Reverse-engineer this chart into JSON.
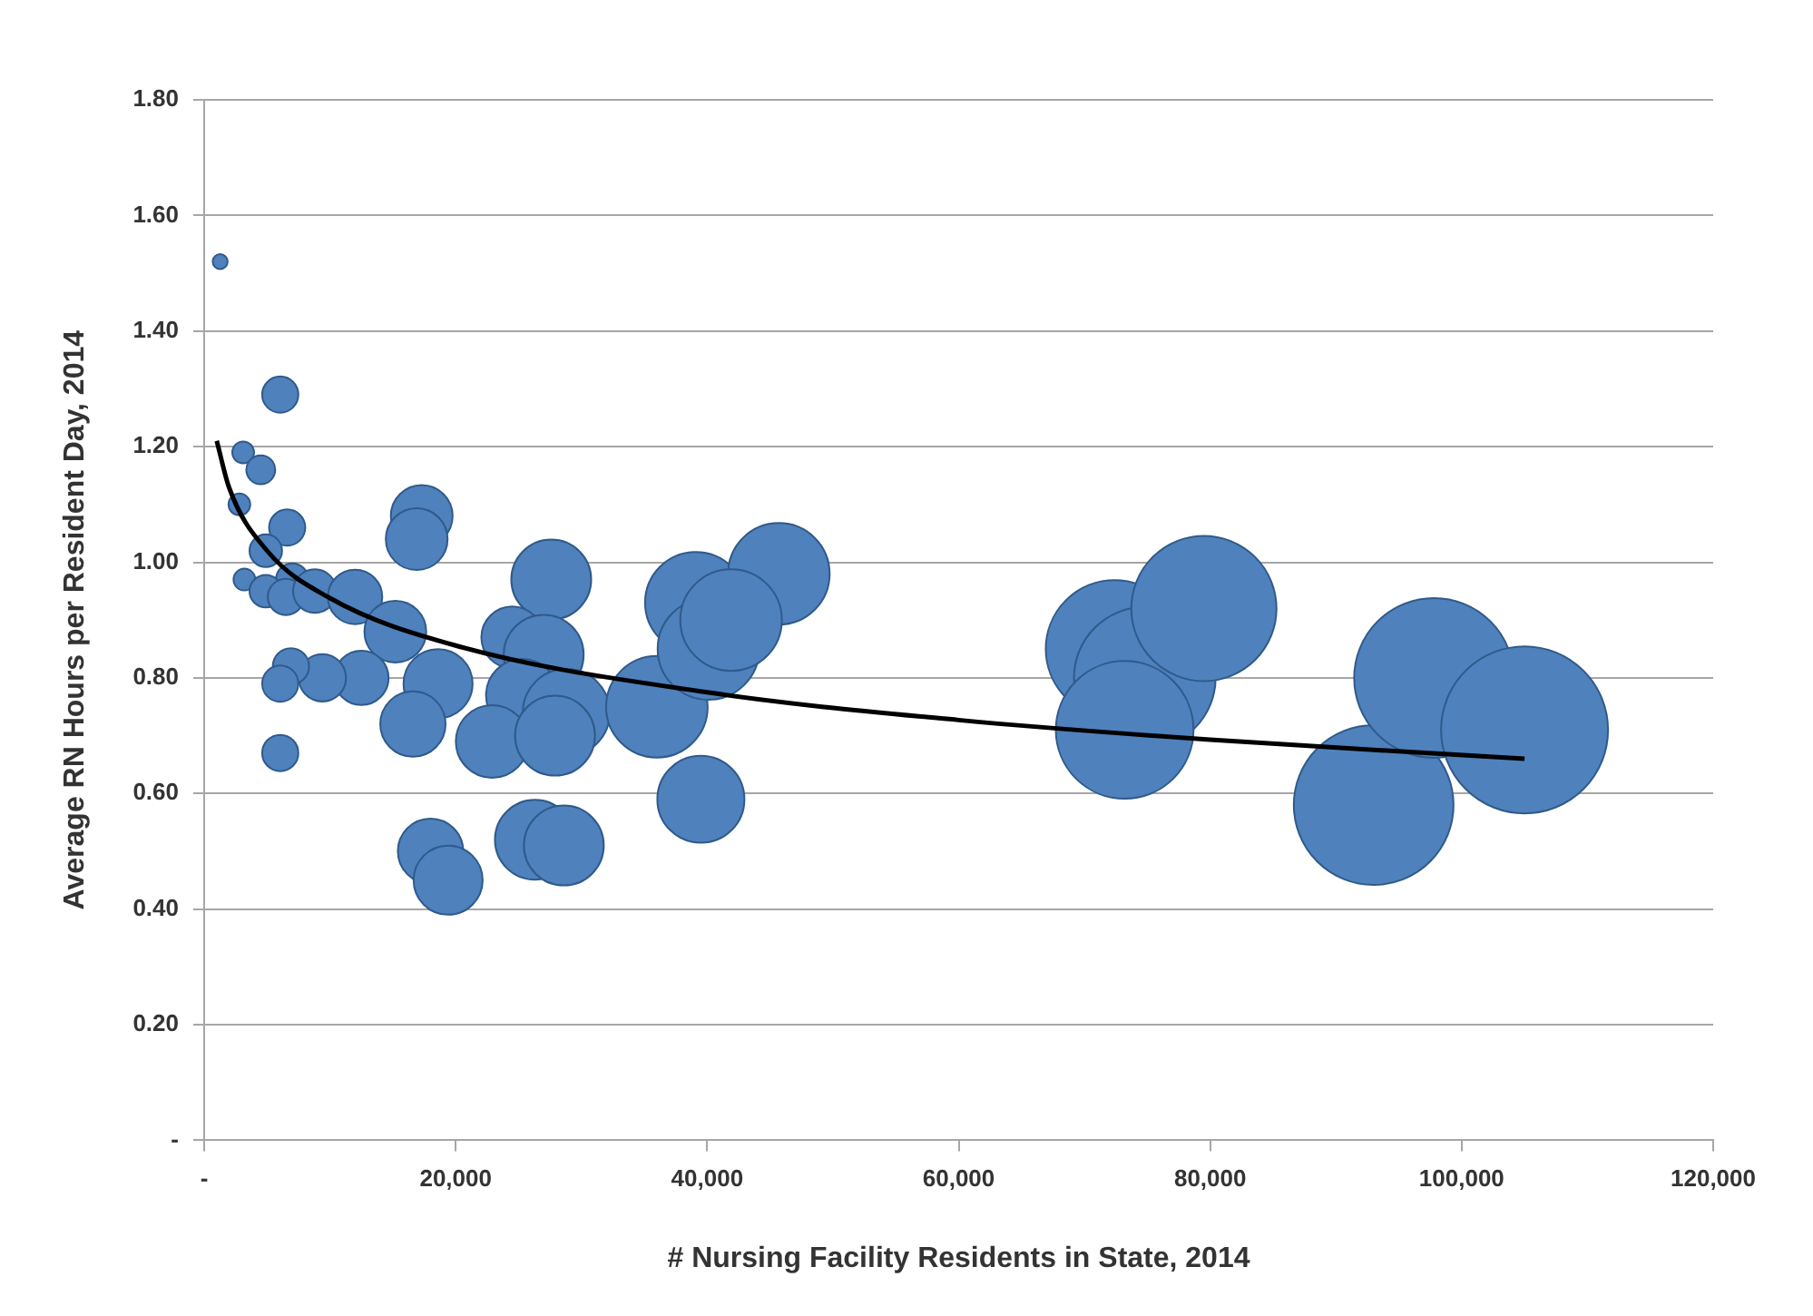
{
  "chart_data": {
    "type": "bubble",
    "xlabel": "# Nursing Facility Residents in State, 2014",
    "ylabel": "Average RN Hours per Resident Day, 2014",
    "xlim": [
      0,
      120000
    ],
    "xticks": [
      {
        "value": 0,
        "label": "-"
      },
      {
        "value": 20000,
        "label": "20,000"
      },
      {
        "value": 40000,
        "label": "40,000"
      },
      {
        "value": 60000,
        "label": "60,000"
      },
      {
        "value": 80000,
        "label": "80,000"
      },
      {
        "value": 100000,
        "label": "100,000"
      },
      {
        "value": 120000,
        "label": "120,000"
      }
    ],
    "ylim": [
      0,
      1.8
    ],
    "yticks": [
      {
        "value": 0,
        "label": "-"
      },
      {
        "value": 0.2,
        "label": "0.20"
      },
      {
        "value": 0.4,
        "label": "0.40"
      },
      {
        "value": 0.6,
        "label": "0.60"
      },
      {
        "value": 0.8,
        "label": "0.80"
      },
      {
        "value": 1.0,
        "label": "1.00"
      },
      {
        "value": 1.2,
        "label": "1.20"
      },
      {
        "value": 1.4,
        "label": "1.40"
      },
      {
        "value": 1.6,
        "label": "1.60"
      },
      {
        "value": 1.8,
        "label": "1.80"
      }
    ],
    "grid": "y",
    "legend": false,
    "series": [
      {
        "type": "bubble",
        "color": "#4f81bd",
        "x": [
          1270,
          6050,
          3100,
          4500,
          2800,
          6600,
          17300,
          16900,
          4900,
          3200,
          7000,
          27600,
          39100,
          45700,
          4900,
          6500,
          8800,
          12000,
          15200,
          24500,
          27000,
          25300,
          28800,
          22900,
          27900,
          18600,
          16600,
          12500,
          9400,
          6900,
          6050,
          6050,
          36000,
          40100,
          41900,
          39500,
          18000,
          19400,
          26300,
          28600,
          72400,
          74800,
          73200,
          79500,
          93000,
          97800,
          105000
        ],
        "values": [
          1.52,
          1.29,
          1.19,
          1.16,
          1.1,
          1.06,
          1.08,
          1.04,
          1.02,
          0.97,
          0.97,
          0.97,
          0.93,
          0.98,
          0.95,
          0.94,
          0.95,
          0.94,
          0.88,
          0.87,
          0.84,
          0.77,
          0.74,
          0.69,
          0.7,
          0.79,
          0.72,
          0.8,
          0.8,
          0.82,
          0.79,
          0.67,
          0.75,
          0.85,
          0.9,
          0.59,
          0.5,
          0.45,
          0.52,
          0.51,
          0.85,
          0.8,
          0.71,
          0.92,
          0.58,
          0.8,
          0.71
        ],
        "sizes": [
          0.008,
          0.047,
          0.017,
          0.03,
          0.017,
          0.047,
          0.137,
          0.137,
          0.038,
          0.017,
          0.038,
          0.229,
          0.37,
          0.37,
          0.038,
          0.047,
          0.068,
          0.106,
          0.137,
          0.137,
          0.229,
          0.189,
          0.272,
          0.189,
          0.229,
          0.171,
          0.153,
          0.106,
          0.08,
          0.047,
          0.047,
          0.047,
          0.37,
          0.37,
          0.37,
          0.272,
          0.153,
          0.171,
          0.229,
          0.229,
          0.68,
          0.72,
          0.68,
          0.756,
          0.915,
          0.915,
          1
        ]
      },
      {
        "type": "line",
        "color": "#000000",
        "marker": "none",
        "x": [
          1000,
          2000,
          5000,
          10000,
          20000,
          40000,
          60000,
          80000,
          105000
        ],
        "values": [
          1.21,
          1.128,
          1.02,
          0.938,
          0.856,
          0.775,
          0.727,
          0.693,
          0.66
        ]
      }
    ]
  }
}
